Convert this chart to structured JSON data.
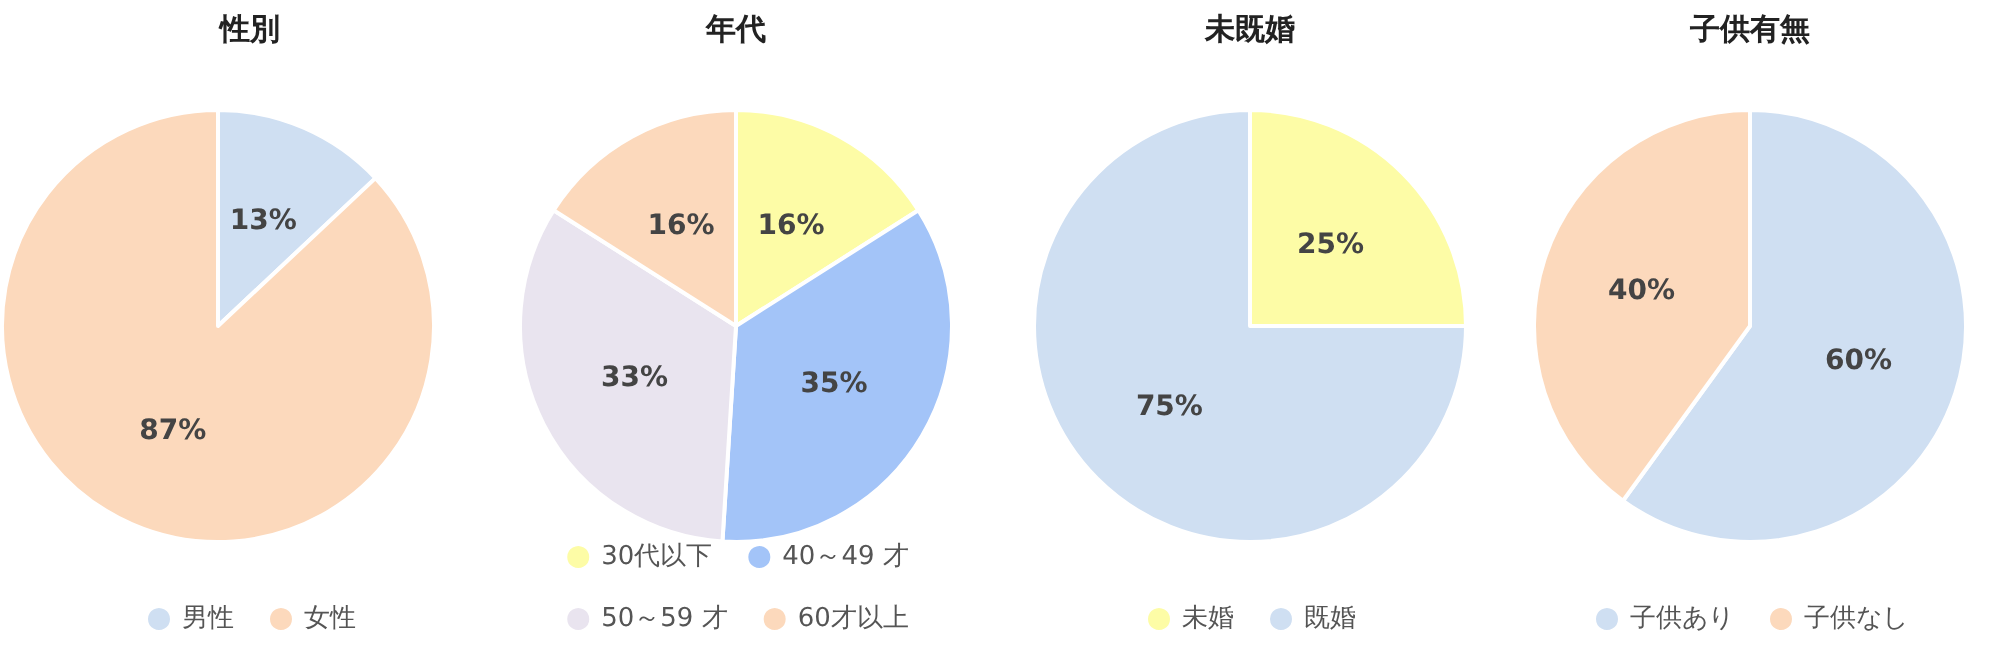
{
  "chart_data": [
    {
      "type": "pie",
      "title": "性別",
      "categories": [
        "男性",
        "女性"
      ],
      "values": [
        13,
        87
      ],
      "value_labels": [
        "13%",
        "87%"
      ],
      "colors": [
        "#cfdff2",
        "#fcd9bc"
      ],
      "legend": "bottom"
    },
    {
      "type": "pie",
      "title": "年代",
      "categories": [
        "30代以下",
        "40～49 才",
        "50～59 才",
        "60才以上"
      ],
      "values": [
        16,
        35,
        33,
        16
      ],
      "value_labels": [
        "16%",
        "35%",
        "33%",
        "16%"
      ],
      "colors": [
        "#fdfca6",
        "#a3c4f8",
        "#e9e4ef",
        "#fcd9bc"
      ],
      "legend": "bottom"
    },
    {
      "type": "pie",
      "title": "未既婚",
      "categories": [
        "未婚",
        "既婚"
      ],
      "values": [
        25,
        75
      ],
      "value_labels": [
        "25%",
        "75%"
      ],
      "colors": [
        "#fdfca6",
        "#cfdff2"
      ],
      "legend": "bottom"
    },
    {
      "type": "pie",
      "title": "子供有無",
      "categories": [
        "子供あり",
        "子供なし"
      ],
      "values": [
        60,
        40
      ],
      "value_labels": [
        "60%",
        "40%"
      ],
      "colors": [
        "#cfdff2",
        "#fcd9bc"
      ],
      "legend": "bottom"
    }
  ]
}
